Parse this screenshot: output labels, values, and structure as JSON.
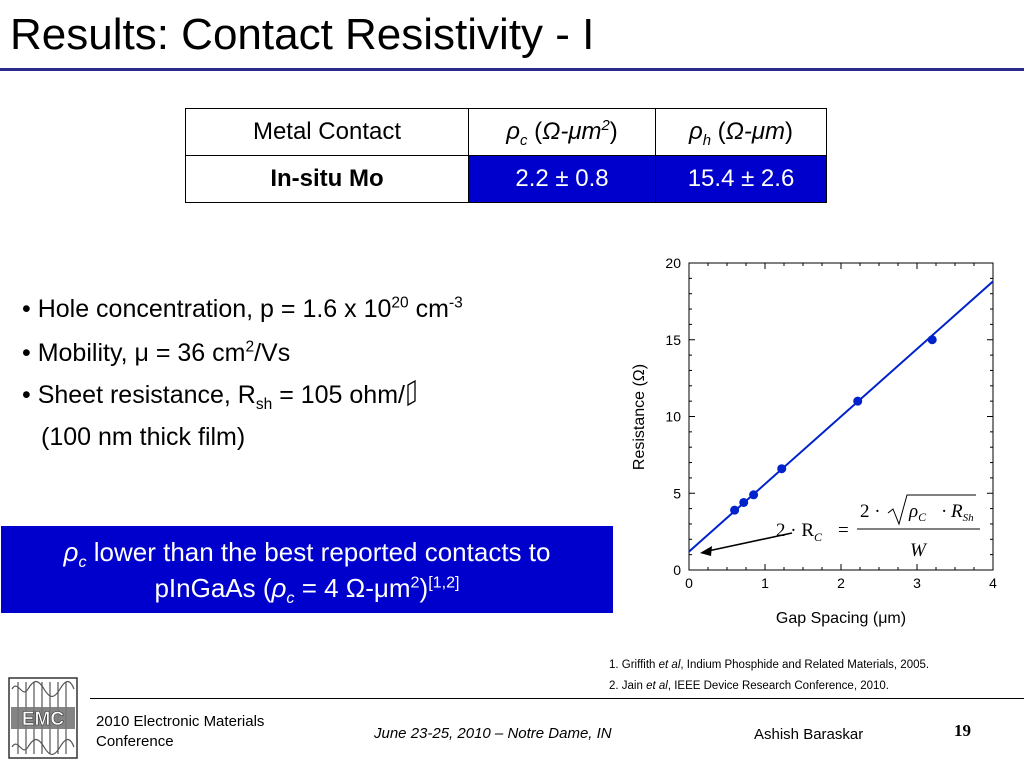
{
  "title": "Results: Contact Resistivity - I",
  "table": {
    "headers": {
      "metal_contact": "Metal Contact",
      "rho_c": {
        "sym": "ρ",
        "sub": "c",
        "unit_pre": " (",
        "unit": "Ω-μm",
        "unit_sup": "2",
        "unit_post": ")"
      },
      "rho_h": {
        "sym": "ρ",
        "sub": "h",
        "unit_pre": " (",
        "unit": "Ω-μm",
        "unit_post": ")"
      }
    },
    "row": {
      "name": "In-situ Mo",
      "rho_c": "2.2 ± 0.8",
      "rho_h": "15.4 ± 2.6"
    }
  },
  "bullets": {
    "b1": {
      "text": "• Hole concentration, p = 1.6 x 10",
      "sup1": "20",
      "mid": " cm",
      "sup2": "-3"
    },
    "b2": {
      "text": "• Mobility, μ = 36 cm",
      "sup": "2",
      "tail": "/Vs"
    },
    "b3": {
      "text": "• Sheet resistance, R",
      "sub": "sh",
      "tail": " = 105 ohm/"
    },
    "b4": "(100 nm thick film)"
  },
  "highlight": {
    "sym": "ρ",
    "sub": "c",
    "line1_tail": " lower than the best reported contacts to",
    "line2_pre": "pInGaAs (",
    "sym2": "ρ",
    "sub2": "c",
    "line2_mid": " = 4 Ω-μm",
    "sup": "2",
    "line2_post": ")",
    "refsup": "[1,2]"
  },
  "references": {
    "r1_pre": "1. Griffith ",
    "r1_etal": "et al",
    "r1_post": ", Indium Phosphide and Related Materials, 2005.",
    "r2_pre": "2. Jain ",
    "r2_etal": "et al",
    "r2_post": ", IEEE Device Research Conference, 2010."
  },
  "footer": {
    "conference": "2010 Electronic Materials Conference",
    "date_location": "June 23-25, 2010 – Notre Dame, IN",
    "author": "Ashish Baraskar",
    "page": "19",
    "logo_text": "EMC"
  },
  "colors": {
    "accent": "#0000cc",
    "title_rule": "#2a2a8c",
    "line": "#0022cc"
  },
  "chart_data": {
    "type": "scatter",
    "xlabel": "Gap Spacing (μm)",
    "ylabel": "Resistance (Ω)",
    "xlim": [
      0,
      4
    ],
    "ylim": [
      0,
      20
    ],
    "xticks": [
      "0",
      "1",
      "2",
      "3",
      "4"
    ],
    "yticks": [
      "0",
      "5",
      "10",
      "15",
      "20"
    ],
    "points": [
      {
        "x": 0.6,
        "y": 3.9
      },
      {
        "x": 0.72,
        "y": 4.4
      },
      {
        "x": 0.85,
        "y": 4.9
      },
      {
        "x": 1.22,
        "y": 6.6
      },
      {
        "x": 2.22,
        "y": 11.0
      },
      {
        "x": 3.2,
        "y": 15.0
      }
    ],
    "fit_line": {
      "intercept": 1.2,
      "slope": 4.4
    },
    "annotation": {
      "lhs": "2 · R",
      "lhs_sub": "C",
      "eq": "=",
      "num_pre": "2 ·",
      "rho": "ρ",
      "rho_sub": "C",
      "dot": "·",
      "r": "R",
      "r_sub": "Sh",
      "den": "W"
    }
  }
}
